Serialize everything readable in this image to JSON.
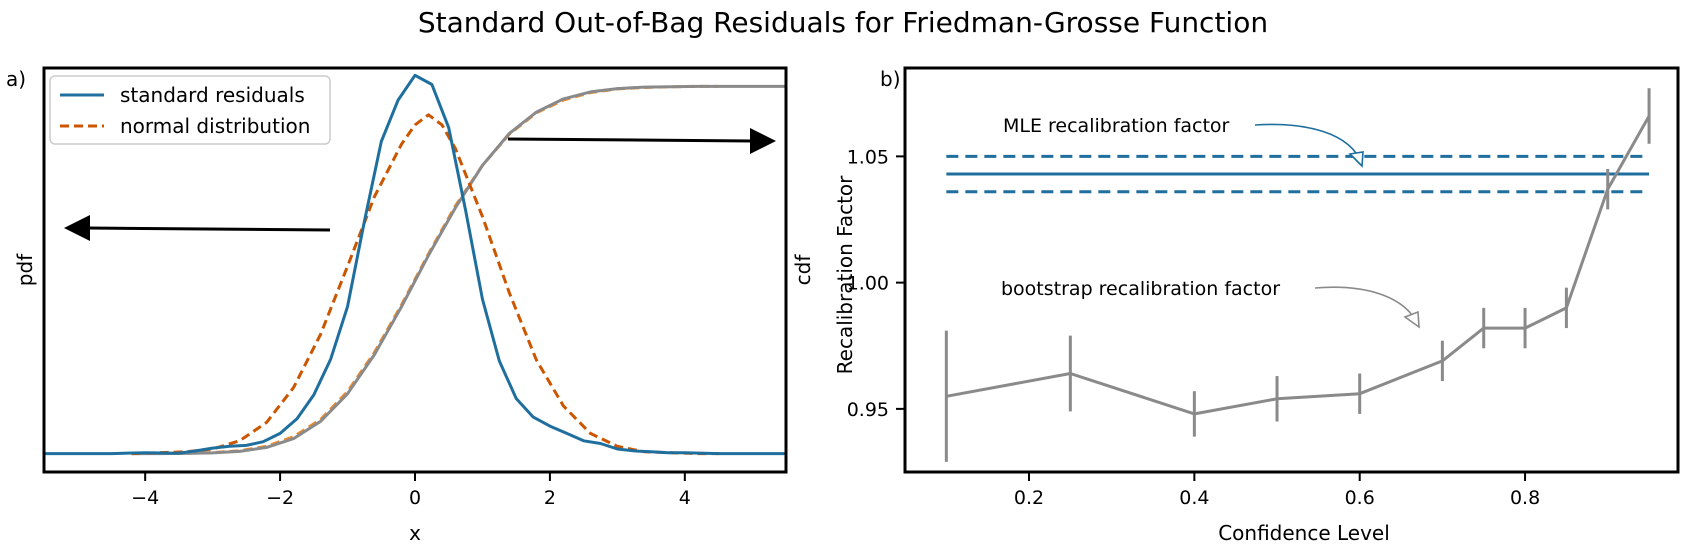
{
  "title": "Standard Out-of-Bag Residuals for Friedman-Grosse Function",
  "colors": {
    "blue": "#1f6f9e",
    "orange_dark": "#cc5500",
    "orange": "#f08a2c",
    "gray": "#8a8a8a"
  },
  "panels": {
    "a": {
      "tag": "a)",
      "xlabel": "x",
      "ylabel_left": "pdf",
      "ylabel_right": "cdf",
      "legend": {
        "items": [
          "standard residuals",
          "normal distribution"
        ]
      }
    },
    "b": {
      "tag": "b)",
      "xlabel": "Confidence Level",
      "ylabel": "Recalibration Factor",
      "annotation_mle": "MLE recalibration factor",
      "annotation_bootstrap": "bootstrap recalibration factor"
    }
  },
  "chart_data": [
    {
      "id": "panel-a",
      "type": "line",
      "xlabel": "x",
      "ylabel_left": "pdf",
      "ylabel_right": "cdf",
      "xlim": [
        -5.5,
        5.5
      ],
      "xticks": [
        -4,
        -2,
        0,
        2,
        4
      ],
      "xtick_labels": [
        "−4",
        "−2",
        "0",
        "2",
        "4"
      ],
      "pdf_ylim": [
        -0.02,
        0.42
      ],
      "cdf_ylim": [
        -0.05,
        1.05
      ],
      "arrows": [
        "pdf axis on left",
        "cdf axis on right"
      ],
      "series": [
        {
          "name": "standard residuals",
          "axis": "pdf",
          "x": [
            -5.5,
            -5.0,
            -4.5,
            -4.0,
            -3.5,
            -3.25,
            -3.0,
            -2.75,
            -2.5,
            -2.25,
            -2.0,
            -1.75,
            -1.5,
            -1.25,
            -1.0,
            -0.75,
            -0.5,
            -0.25,
            0.0,
            0.25,
            0.5,
            0.75,
            1.0,
            1.25,
            1.5,
            1.75,
            2.0,
            2.25,
            2.5,
            2.75,
            3.0,
            3.25,
            3.5,
            3.75,
            4.0,
            4.5,
            5.0,
            5.5
          ],
          "y": [
            0.0,
            0.0,
            0.0,
            0.001,
            0.0005,
            0.003,
            0.006,
            0.008,
            0.009,
            0.013,
            0.022,
            0.038,
            0.064,
            0.103,
            0.16,
            0.253,
            0.34,
            0.385,
            0.412,
            0.402,
            0.355,
            0.265,
            0.168,
            0.101,
            0.06,
            0.04,
            0.03,
            0.022,
            0.014,
            0.011,
            0.005,
            0.003,
            0.002,
            0.001,
            0.001,
            0.0,
            0.0,
            0.0
          ]
        },
        {
          "name": "normal distribution",
          "axis": "pdf",
          "x": [
            -4.2,
            -3.8,
            -3.4,
            -3.0,
            -2.6,
            -2.2,
            -1.8,
            -1.4,
            -1.0,
            -0.6,
            -0.2,
            0.0,
            0.2,
            0.4,
            0.6,
            1.0,
            1.4,
            1.8,
            2.2,
            2.6,
            3.0,
            3.4,
            3.8,
            4.2,
            4.5
          ],
          "y": [
            0.0,
            0.001,
            0.002,
            0.005,
            0.014,
            0.034,
            0.072,
            0.13,
            0.204,
            0.28,
            0.337,
            0.358,
            0.369,
            0.358,
            0.332,
            0.258,
            0.175,
            0.102,
            0.052,
            0.022,
            0.008,
            0.002,
            0.001,
            0.0,
            0.0
          ]
        },
        {
          "name": "normal cdf",
          "axis": "cdf",
          "x": [
            -4.2,
            -3.8,
            -3.4,
            -3.0,
            -2.6,
            -2.2,
            -1.8,
            -1.4,
            -1.0,
            -0.6,
            -0.2,
            0.2,
            0.6,
            1.0,
            1.4,
            1.8,
            2.2,
            2.6,
            3.0,
            3.4,
            3.8,
            4.2,
            4.5
          ],
          "y": [
            0.0,
            0.0003,
            0.0008,
            0.0027,
            0.0078,
            0.02,
            0.046,
            0.093,
            0.169,
            0.276,
            0.405,
            0.544,
            0.675,
            0.785,
            0.87,
            0.928,
            0.963,
            0.983,
            0.993,
            0.997,
            0.999,
            1.0,
            1.0
          ]
        },
        {
          "name": "empirical cdf",
          "axis": "cdf",
          "x": [
            -4.2,
            -3.8,
            -3.4,
            -3.0,
            -2.6,
            -2.2,
            -1.8,
            -1.4,
            -1.0,
            -0.6,
            -0.2,
            0.2,
            0.6,
            1.0,
            1.4,
            1.8,
            2.2,
            2.6,
            3.0,
            3.4,
            3.8,
            4.2,
            4.6,
            5.0,
            5.5
          ],
          "y": [
            0.0,
            0.0002,
            0.0006,
            0.002,
            0.006,
            0.017,
            0.041,
            0.088,
            0.163,
            0.27,
            0.4,
            0.54,
            0.67,
            0.785,
            0.872,
            0.93,
            0.966,
            0.985,
            0.994,
            0.998,
            0.999,
            1.0,
            1.0,
            1.0,
            1.0
          ]
        }
      ]
    },
    {
      "id": "panel-b",
      "type": "line",
      "xlabel": "Confidence Level",
      "ylabel": "Recalibration Factor",
      "xlim": [
        0.05,
        0.985
      ],
      "ylim": [
        0.925,
        1.085
      ],
      "xticks": [
        0.2,
        0.4,
        0.6,
        0.8
      ],
      "xtick_labels": [
        "0.2",
        "0.4",
        "0.6",
        "0.8"
      ],
      "yticks": [
        0.95,
        1.0,
        1.05
      ],
      "ytick_labels": [
        "0.95",
        "1.00",
        "1.05"
      ],
      "mle": {
        "value": 1.043,
        "lower": 1.036,
        "upper": 1.05
      },
      "bootstrap": {
        "x": [
          0.1,
          0.25,
          0.4,
          0.5,
          0.6,
          0.7,
          0.75,
          0.8,
          0.85,
          0.9,
          0.95
        ],
        "y": [
          0.955,
          0.964,
          0.948,
          0.954,
          0.956,
          0.969,
          0.982,
          0.982,
          0.99,
          1.037,
          1.066
        ],
        "err": [
          0.026,
          0.015,
          0.009,
          0.009,
          0.008,
          0.008,
          0.008,
          0.008,
          0.008,
          0.008,
          0.011
        ]
      }
    }
  ]
}
